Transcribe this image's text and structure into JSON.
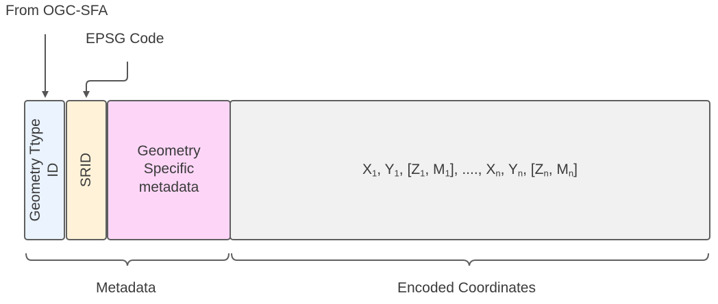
{
  "annotations": {
    "from_ogc": "From OGC-SFA",
    "epsg_code": "EPSG Code"
  },
  "fields": {
    "geometry_type": {
      "line1": "Geometry Ttype",
      "line2": "ID",
      "fill": "#EAF3FE"
    },
    "srid": {
      "label": "SRID",
      "fill": "#FFF2D9"
    },
    "geometry_metadata": {
      "line1": "Geometry",
      "line2": "Specific",
      "line3": "metadata",
      "fill": "#FDD6F7"
    },
    "coordinates": {
      "fill": "#F1F1F1",
      "formula": [
        {
          "t": "X"
        },
        {
          "s": "1"
        },
        {
          "t": ", Y"
        },
        {
          "s": "1"
        },
        {
          "t": ", [Z"
        },
        {
          "s": "1"
        },
        {
          "t": ", M"
        },
        {
          "s": "1"
        },
        {
          "t": "], ...., X"
        },
        {
          "s": "n"
        },
        {
          "t": ", Y"
        },
        {
          "s": "n"
        },
        {
          "t": ", [Z"
        },
        {
          "s": "n"
        },
        {
          "t": ", M"
        },
        {
          "s": "n"
        },
        {
          "t": "]"
        }
      ]
    }
  },
  "groups": {
    "metadata": "Metadata",
    "encoded": "Encoded Coordinates"
  }
}
